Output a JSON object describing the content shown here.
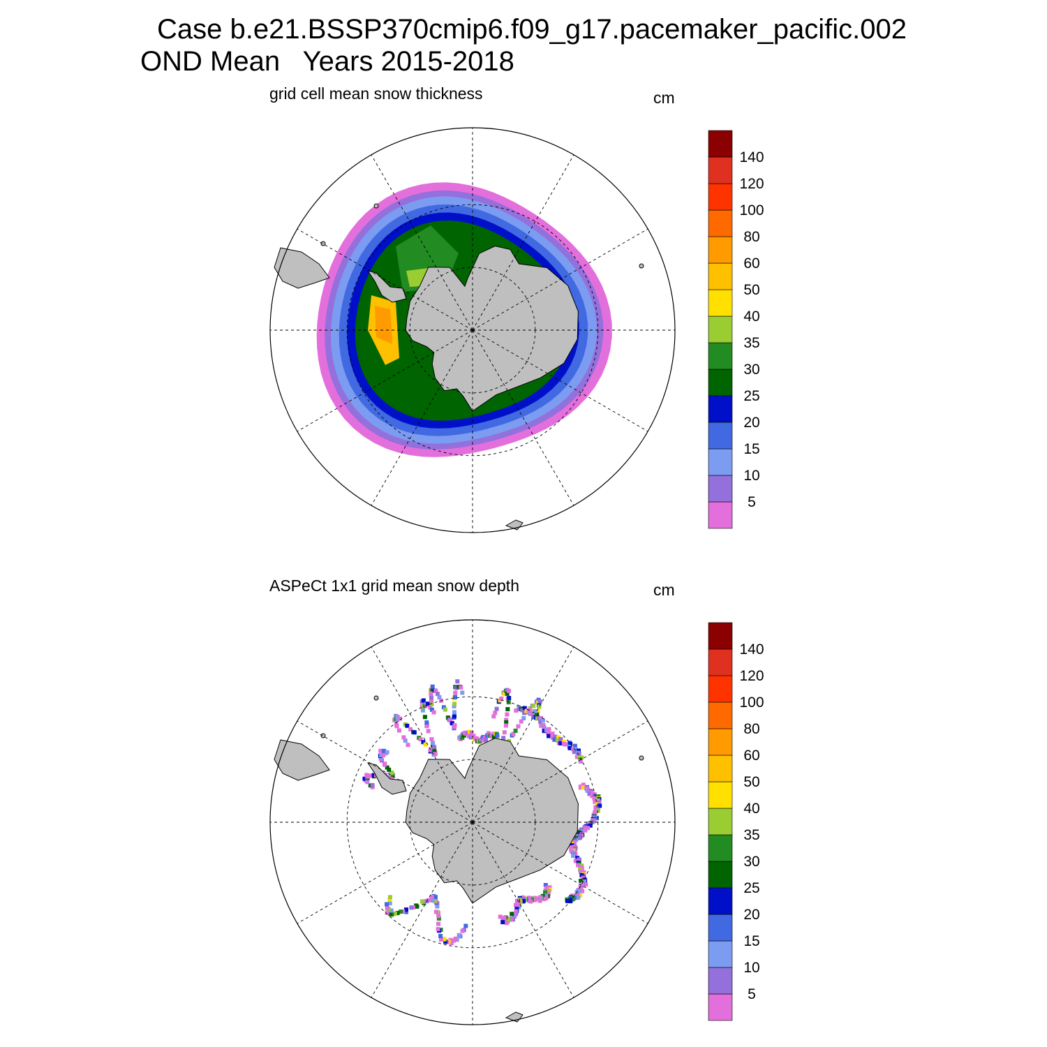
{
  "header": {
    "title_line1": "Case b.e21.BSSP370cmip6.f09_g17.pacemaker_pacific.002",
    "title_line2": "OND Mean   Years 2015-2018"
  },
  "panels": [
    {
      "id": "model",
      "title": "grid cell mean snow thickness",
      "units": "cm"
    },
    {
      "id": "obs",
      "title": "ASPeCt 1x1 grid mean snow depth",
      "units": "cm"
    }
  ],
  "colorbar": {
    "levels": [
      "5",
      "10",
      "15",
      "20",
      "25",
      "30",
      "35",
      "40",
      "50",
      "60",
      "80",
      "100",
      "120",
      "140"
    ],
    "colors": [
      "#e36fdc",
      "#9370db",
      "#7b9cf0",
      "#4169e1",
      "#0010c8",
      "#006400",
      "#228b22",
      "#9acd32",
      "#ffe000",
      "#ffc000",
      "#ff9a00",
      "#ff6a00",
      "#ff3300",
      "#e03020",
      "#8b0000"
    ]
  },
  "map_style": {
    "land_color": "#bfbfbf",
    "coast_color": "#000000",
    "grid_color": "#000000"
  }
}
